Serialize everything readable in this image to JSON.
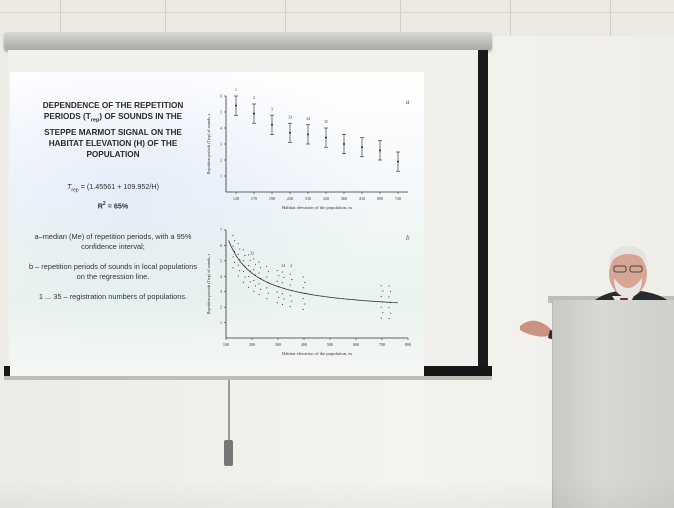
{
  "slide": {
    "title_lines": [
      "DEPENDENCE OF THE REPETITION",
      "PERIODS (T",
      "rep",
      ") OF SOUNDS IN THE",
      "STEPPE MARMOT SIGNAL ON THE",
      "HABITAT ELEVATION (H) OF THE",
      "POPULATION"
    ],
    "formula": "T",
    "formula_sub": "rep",
    "formula_rest": " = (1.45561 + 109.952/H)",
    "r_squared_label": "R",
    "r_squared_sup": "2",
    "r_squared_rest": " = 65%",
    "legend_a": "a–median (Me) of repetition periods, with a 95% confidence interval;",
    "legend_b": "b – repetition periods of sounds in local populations on the regression line.",
    "legend_c": "1 ... 35 – registration numbers of populations."
  },
  "chart_data": [
    {
      "type": "scatter",
      "panel_label": "a",
      "ylabel": "Repetition periods (Trep) of sounds, s",
      "xlabel": "Habitat elevation of the population, m",
      "x_ticks": [
        "120",
        "170",
        "190",
        "220",
        "310",
        "320",
        "360",
        "410",
        "690",
        "720"
      ],
      "y_ticks": [
        "1",
        "2",
        "3",
        "4",
        "5",
        "6"
      ],
      "ylim": [
        0,
        6
      ],
      "point_labels": [
        "1",
        "2",
        "3",
        "33",
        "34",
        "35"
      ],
      "colors": {
        "marker": "#222222",
        "axis": "#333333"
      }
    },
    {
      "type": "scatter",
      "panel_label": "b",
      "ylabel": "Repetition periods (Trep) of sounds, s",
      "xlabel": "Habitat elevation of the population, m",
      "x_ticks": [
        "100",
        "200",
        "300",
        "400",
        "500",
        "600",
        "700",
        "800"
      ],
      "y_ticks": [
        "1",
        "2",
        "3",
        "4",
        "5",
        "6",
        "7"
      ],
      "xlim": [
        100,
        800
      ],
      "ylim": [
        0,
        7
      ],
      "point_labels": [
        "33",
        "34",
        "4"
      ],
      "colors": {
        "marker": "#222222",
        "curve": "#333333"
      }
    }
  ]
}
